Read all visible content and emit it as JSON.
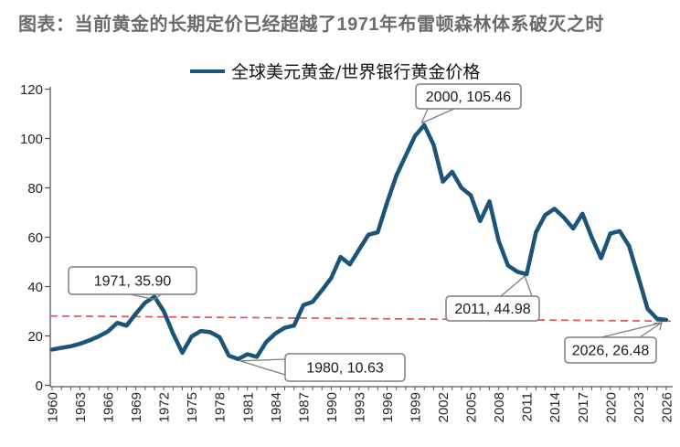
{
  "title": "图表：当前黄金的长期定价已经超越了1971年布雷顿森林体系破灭之时",
  "legend": {
    "label": "全球美元黄金/世界银行黄金价格"
  },
  "colors": {
    "series_line": "#1b5379",
    "trendline_red": "#e05555",
    "title_gray": "#6b6b6b",
    "axis_line": "#595959",
    "tick_label": "#262626",
    "callout_border": "#7f7f7f",
    "callout_text": "#1a1a1a"
  },
  "chart_data": {
    "type": "line",
    "title": "图表：当前黄金的长期定价已经超越了1971年布雷顿森林体系破灭之时",
    "xlabel": "",
    "ylabel": "",
    "ylim": [
      0,
      120
    ],
    "y_ticks": [
      0,
      20,
      40,
      60,
      80,
      100,
      120
    ],
    "x_start": 1960,
    "x_end": 2026,
    "x_label_every": 3,
    "grid": false,
    "legend_position": "top-center",
    "series": [
      {
        "name": "全球美元黄金/世界银行黄金价格",
        "color": "#1b5379",
        "x": [
          1960,
          1961,
          1962,
          1963,
          1964,
          1965,
          1966,
          1967,
          1968,
          1969,
          1970,
          1971,
          1972,
          1973,
          1974,
          1975,
          1976,
          1977,
          1978,
          1979,
          1980,
          1981,
          1982,
          1983,
          1984,
          1985,
          1986,
          1987,
          1988,
          1989,
          1990,
          1991,
          1992,
          1993,
          1994,
          1995,
          1996,
          1997,
          1998,
          1999,
          2000,
          2001,
          2002,
          2003,
          2004,
          2005,
          2006,
          2007,
          2008,
          2009,
          2010,
          2011,
          2012,
          2013,
          2014,
          2015,
          2016,
          2017,
          2018,
          2019,
          2020,
          2021,
          2022,
          2023,
          2024,
          2025,
          2026
        ],
        "values": [
          14.5,
          15.2,
          15.8,
          16.8,
          18.2,
          19.8,
          21.8,
          25.3,
          24.2,
          29.0,
          33.5,
          35.9,
          30.0,
          21.0,
          13.2,
          19.8,
          22.0,
          21.5,
          19.5,
          12.0,
          10.63,
          12.6,
          11.5,
          17.5,
          21.0,
          23.3,
          24.2,
          32.5,
          33.8,
          38.5,
          43.5,
          52.0,
          49.0,
          55.0,
          61.0,
          62.0,
          74.0,
          85.0,
          93.0,
          101.0,
          105.46,
          97.5,
          82.5,
          86.5,
          80.0,
          77.0,
          66.5,
          74.5,
          58.5,
          48.5,
          46.0,
          44.98,
          62.0,
          69.0,
          71.5,
          68.0,
          63.5,
          69.5,
          60.0,
          51.5,
          61.5,
          62.5,
          56.5,
          44.0,
          31.0,
          27.0,
          26.48
        ]
      }
    ],
    "annotations": [
      {
        "label": "1971, 35.90",
        "year": 1971,
        "value": 35.9
      },
      {
        "label": "1980, 10.63",
        "year": 1980,
        "value": 10.63
      },
      {
        "label": "2000, 105.46",
        "year": 2000,
        "value": 105.46
      },
      {
        "label": "2011, 44.98",
        "year": 2011,
        "value": 44.98
      },
      {
        "label": "2026, 26.48",
        "year": 2026,
        "value": 26.48
      }
    ],
    "trendline": {
      "style": "dashed",
      "color": "#e05555",
      "start_value": 28.1,
      "end_value": 26.0
    }
  }
}
